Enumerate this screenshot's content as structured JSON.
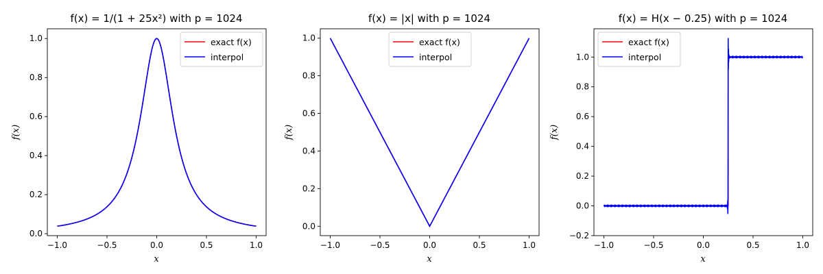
{
  "chart_data": [
    {
      "type": "line",
      "function": "runge",
      "title": "f(x) = 1/(1 + 25x²) with p = 1024",
      "xlabel": "x",
      "ylabel": "f(x)",
      "xlim": [
        -1.1,
        1.1
      ],
      "ylim": [
        -0.01,
        1.05
      ],
      "xticks": [
        -1.0,
        -0.5,
        0.0,
        0.5,
        1.0
      ],
      "xtick_labels": [
        "−1.0",
        "−0.5",
        "0.0",
        "0.5",
        "1.0"
      ],
      "yticks": [
        0.0,
        0.2,
        0.4,
        0.6,
        0.8,
        1.0
      ],
      "ytick_labels": [
        "0.0",
        "0.2",
        "0.4",
        "0.6",
        "0.8",
        "1.0"
      ],
      "legend_position": "top-right",
      "series": [
        {
          "name": "exact f(x)",
          "color": "#ff0000"
        },
        {
          "name": "interpol",
          "color": "#0000ff"
        }
      ]
    },
    {
      "type": "line",
      "function": "abs",
      "title": "f(x) = |x| with p = 1024",
      "xlabel": "x",
      "ylabel": "f(x)",
      "xlim": [
        -1.1,
        1.1
      ],
      "ylim": [
        -0.05,
        1.05
      ],
      "xticks": [
        -1.0,
        -0.5,
        0.0,
        0.5,
        1.0
      ],
      "xtick_labels": [
        "−1.0",
        "−0.5",
        "0.0",
        "0.5",
        "1.0"
      ],
      "yticks": [
        0.0,
        0.2,
        0.4,
        0.6,
        0.8,
        1.0
      ],
      "ytick_labels": [
        "0.0",
        "0.2",
        "0.4",
        "0.6",
        "0.8",
        "1.0"
      ],
      "legend_position": "top-center",
      "series": [
        {
          "name": "exact f(x)",
          "color": "#ff0000"
        },
        {
          "name": "interpol",
          "color": "#0000ff"
        }
      ]
    },
    {
      "type": "line",
      "function": "heaviside",
      "step_at": 0.25,
      "title": "f(x) = H(x − 0.25) with p = 1024",
      "xlabel": "x",
      "ylabel": "f(x)",
      "xlim": [
        -1.1,
        1.1
      ],
      "ylim": [
        -0.2,
        1.19
      ],
      "xticks": [
        -1.0,
        -0.5,
        0.0,
        0.5,
        1.0
      ],
      "xtick_labels": [
        "−1.0",
        "−0.5",
        "0.0",
        "0.5",
        "1.0"
      ],
      "yticks": [
        -0.2,
        0.0,
        0.2,
        0.4,
        0.6,
        0.8,
        1.0
      ],
      "ytick_labels": [
        "−0.2",
        "0.0",
        "0.2",
        "0.4",
        "0.6",
        "0.8",
        "1.0"
      ],
      "overshoot_max": 1.13,
      "undershoot_min": -0.135,
      "legend_position": "top-left",
      "series": [
        {
          "name": "exact f(x)",
          "color": "#ff0000"
        },
        {
          "name": "interpol",
          "color": "#0000ff"
        }
      ]
    }
  ]
}
